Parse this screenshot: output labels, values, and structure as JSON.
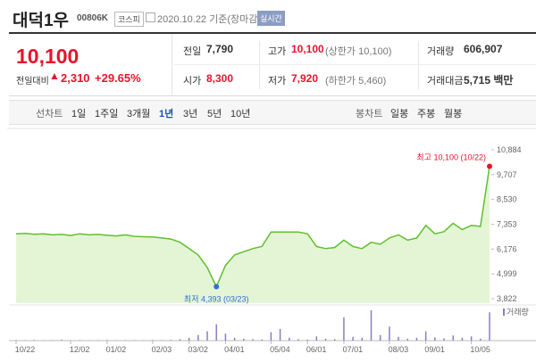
{
  "header": {
    "name": "대덕1우",
    "code": "00806K",
    "market": "코스피",
    "date": "2020.10.22 기준(장마감)",
    "badge": "실시간"
  },
  "summary": {
    "price": "10,100",
    "change_label": "전일대비",
    "change": "2,310",
    "change_pct": "+29.65%",
    "stats": [
      {
        "label": "전일",
        "value": "7,790"
      },
      {
        "label": "고가",
        "value": "10,100",
        "note": "(상한가 10,100)"
      },
      {
        "label": "거래량",
        "value": "606,907"
      },
      {
        "label": "시가",
        "value": "8,300"
      },
      {
        "label": "저가",
        "value": "7,920",
        "note": "(하한가 5,460)"
      },
      {
        "label": "거래대금",
        "value": "5,715 백만"
      }
    ]
  },
  "tabs": {
    "line_label": "선차트",
    "line_periods": [
      "1일",
      "1주일",
      "3개월",
      "1년",
      "3년",
      "5년",
      "10년"
    ],
    "candle_label": "봉차트",
    "candle_periods": [
      "일봉",
      "주봉",
      "월봉"
    ]
  },
  "chart_data": {
    "type": "line",
    "color": "#62bf2e",
    "fill": "#e4f5d6",
    "categories": [
      "10/22",
      null,
      null,
      null,
      null,
      null,
      "12/02",
      null,
      null,
      null,
      "01/02",
      null,
      null,
      null,
      null,
      "02/03",
      null,
      null,
      null,
      "03/02",
      null,
      null,
      null,
      "04/01",
      null,
      null,
      null,
      null,
      "05/04",
      null,
      null,
      null,
      "06/01",
      null,
      null,
      null,
      "07/01",
      null,
      null,
      null,
      null,
      "08/03",
      null,
      null,
      null,
      "09/01",
      null,
      null,
      null,
      null,
      "10/05",
      null,
      null
    ],
    "values": [
      6900,
      6920,
      6880,
      6900,
      6850,
      6870,
      6820,
      6900,
      6850,
      6870,
      6830,
      6800,
      6850,
      6780,
      6760,
      6750,
      6700,
      6650,
      6500,
      6200,
      5900,
      5300,
      4393,
      5400,
      5900,
      6050,
      6200,
      6300,
      6980,
      6980,
      6980,
      6980,
      6900,
      6300,
      6200,
      6250,
      6600,
      6300,
      6200,
      6500,
      6400,
      6700,
      6850,
      6600,
      6700,
      7300,
      6900,
      7000,
      7400,
      7100,
      7300,
      7250,
      10100
    ],
    "ylim": [
      3822,
      10884
    ],
    "yticks": [
      {
        "value": 3822,
        "label": "3,822"
      },
      {
        "value": 4999,
        "label": "4,999"
      },
      {
        "value": 6176,
        "label": "6,176"
      },
      {
        "value": 7353,
        "label": "7,353"
      },
      {
        "value": 8530,
        "label": "8,530"
      },
      {
        "value": 9707,
        "label": "9,707"
      },
      {
        "value": 10884,
        "label": "10,884"
      }
    ],
    "annotations": [
      "최고 10,100 (10/22)",
      "최저 4,393 (03/23)"
    ],
    "volume": {
      "name": "거래량",
      "color": "#8e7cc3",
      "values": [
        12000,
        8000,
        15000,
        6000,
        9000,
        20000,
        7000,
        11000,
        5000,
        9000,
        14000,
        6000,
        8000,
        10000,
        7000,
        12000,
        9000,
        15000,
        30000,
        60000,
        120000,
        200000,
        350000,
        150000,
        60000,
        40000,
        30000,
        25000,
        180000,
        250000,
        60000,
        30000,
        20000,
        90000,
        40000,
        30000,
        500000,
        80000,
        60000,
        650000,
        120000,
        300000,
        80000,
        40000,
        60000,
        200000,
        70000,
        50000,
        110000,
        60000,
        90000,
        40000,
        606907
      ]
    }
  }
}
